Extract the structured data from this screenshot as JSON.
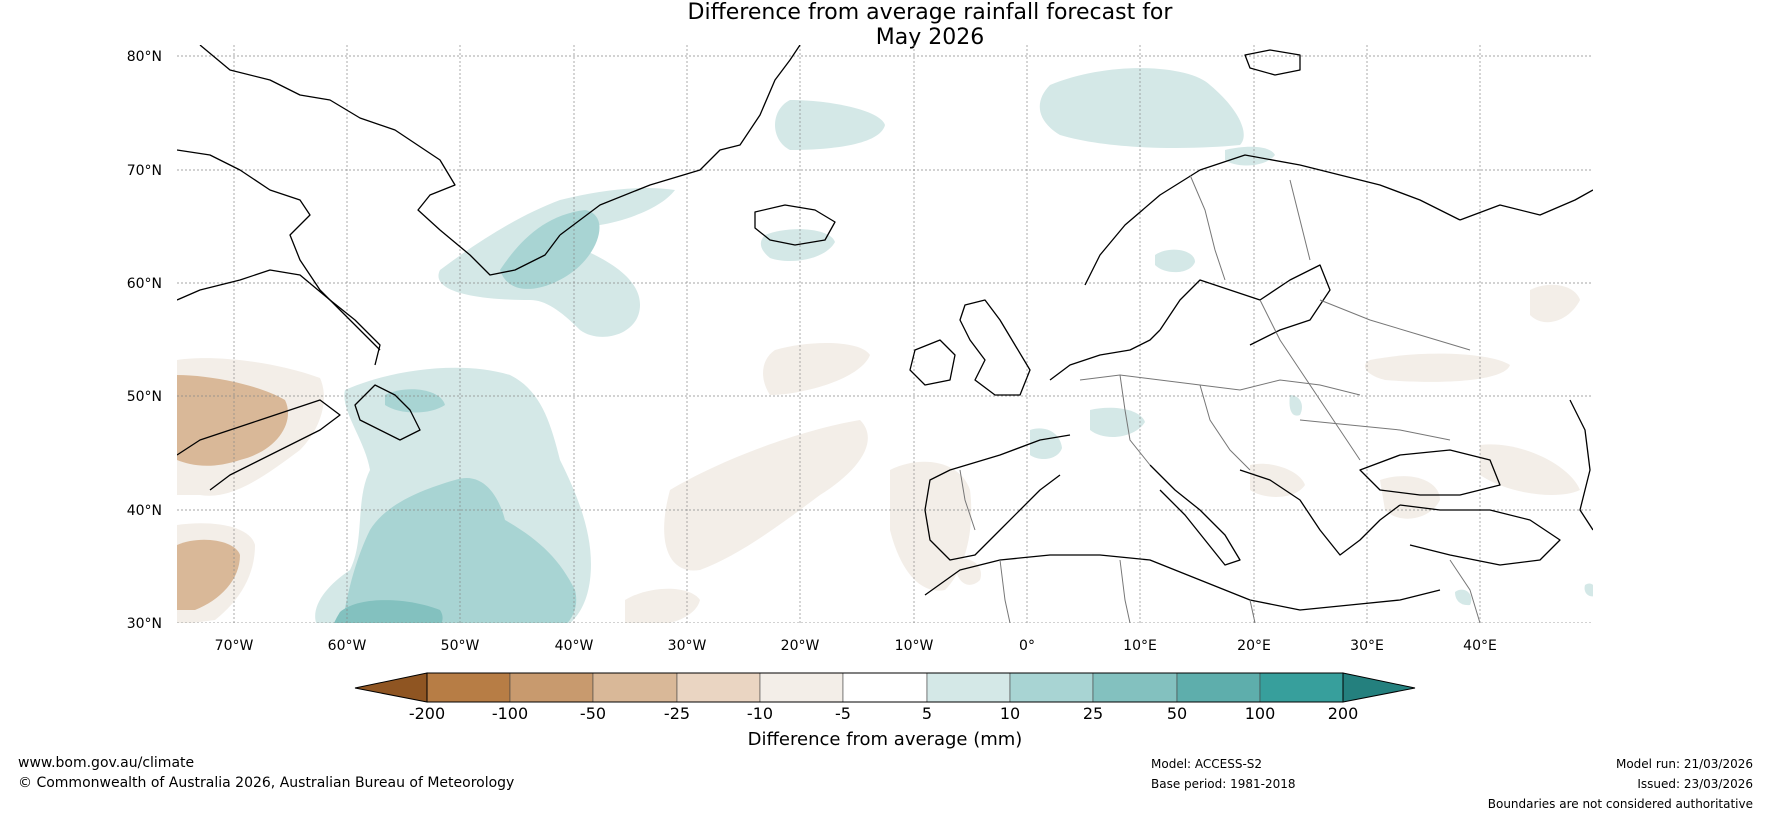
{
  "title_line1": "Difference from average rainfall forecast for",
  "title_line2": "May 2026",
  "lat_labels": [
    "80°N",
    "70°N",
    "60°N",
    "50°N",
    "40°N",
    "30°N"
  ],
  "lon_labels": [
    "70°W",
    "60°W",
    "50°W",
    "40°W",
    "30°W",
    "20°W",
    "10°W",
    "0°",
    "10°E",
    "20°E",
    "30°E",
    "40°E"
  ],
  "colorbar": {
    "colors": [
      "#a5692a",
      "#b77d45",
      "#c89a6e",
      "#d9b898",
      "#ead5c2",
      "#f3eee8",
      "#ffffff",
      "#d4e8e7",
      "#a8d4d3",
      "#83c1bf",
      "#5eaeac",
      "#379f9c"
    ],
    "under_color": "#8f5522",
    "over_color": "#24807e",
    "ticks": [
      "-200",
      "-100",
      "-50",
      "-25",
      "-10",
      "-5",
      "5",
      "10",
      "25",
      "50",
      "100",
      "200"
    ],
    "label": "Difference from average (mm)"
  },
  "footer": {
    "url": "www.bom.gov.au/climate",
    "copyright": "© Commonwealth of Australia 2026, Australian Bureau of Meteorology",
    "model": "Model: ACCESS-S2",
    "base_period": "Base period: 1981-2018",
    "model_run": "Model run: 21/03/2026",
    "issued": "Issued: 23/03/2026",
    "disclaimer": "Boundaries are not considered authoritative"
  }
}
